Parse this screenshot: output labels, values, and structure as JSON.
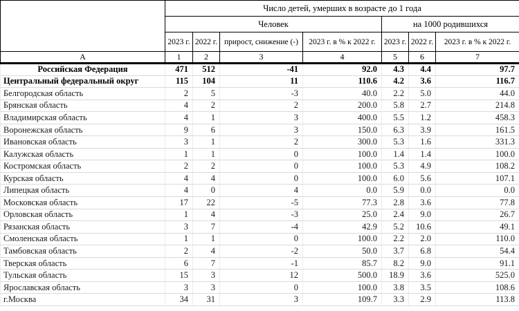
{
  "table": {
    "col_group_header": "Число детей, умерших в возрасте до 1 года",
    "unit_group_left": "Человек",
    "unit_group_right": "на 1000 родившихся",
    "col_headers": [
      "2023 г.",
      "2022 г.",
      "прирост, снижение (-)",
      "2023 г. в % к 2022 г.",
      "2023 г.",
      "2022 г.",
      "2023 г. в % к 2022 г."
    ],
    "index_row": [
      "А",
      "1",
      "2",
      "3",
      "4",
      "5",
      "6",
      "7"
    ],
    "rows": [
      {
        "name": "Российская Федерация",
        "bold": true,
        "center": true,
        "values": [
          "471",
          "512",
          "-41",
          "92.0",
          "4.3",
          "4.4",
          "97.7"
        ]
      },
      {
        "name": "Центральный федеральный округ",
        "bold": true,
        "center": false,
        "values": [
          "115",
          "104",
          "11",
          "110.6",
          "4.2",
          "3.6",
          "116.7"
        ]
      },
      {
        "name": "Белгородская область",
        "values": [
          "2",
          "5",
          "-3",
          "40.0",
          "2.2",
          "5.0",
          "44.0"
        ]
      },
      {
        "name": "Брянская область",
        "values": [
          "4",
          "2",
          "2",
          "200.0",
          "5.8",
          "2.7",
          "214.8"
        ]
      },
      {
        "name": "Владимирская область",
        "values": [
          "4",
          "1",
          "3",
          "400.0",
          "5.5",
          "1.2",
          "458.3"
        ]
      },
      {
        "name": "Воронежская область",
        "values": [
          "9",
          "6",
          "3",
          "150.0",
          "6.3",
          "3.9",
          "161.5"
        ]
      },
      {
        "name": "Ивановская область",
        "values": [
          "3",
          "1",
          "2",
          "300.0",
          "5.3",
          "1.6",
          "331.3"
        ]
      },
      {
        "name": "Калужская область",
        "values": [
          "1",
          "1",
          "0",
          "100.0",
          "1.4",
          "1.4",
          "100.0"
        ]
      },
      {
        "name": "Костромская область",
        "values": [
          "2",
          "2",
          "0",
          "100.0",
          "5.3",
          "4.9",
          "108.2"
        ]
      },
      {
        "name": "Курская область",
        "values": [
          "4",
          "4",
          "0",
          "100.0",
          "6.0",
          "5.6",
          "107.1"
        ]
      },
      {
        "name": "Липецкая область",
        "values": [
          "4",
          "0",
          "4",
          "0.0",
          "5.9",
          "0.0",
          "0.0"
        ]
      },
      {
        "name": "Московская область",
        "values": [
          "17",
          "22",
          "-5",
          "77.3",
          "2.8",
          "3.6",
          "77.8"
        ]
      },
      {
        "name": "Орловская область",
        "values": [
          "1",
          "4",
          "-3",
          "25.0",
          "2.4",
          "9.0",
          "26.7"
        ]
      },
      {
        "name": "Рязанская область",
        "values": [
          "3",
          "7",
          "-4",
          "42.9",
          "5.2",
          "10.6",
          "49.1"
        ]
      },
      {
        "name": "Смоленская область",
        "values": [
          "1",
          "1",
          "0",
          "100.0",
          "2.2",
          "2.0",
          "110.0"
        ]
      },
      {
        "name": "Тамбовская область",
        "values": [
          "2",
          "4",
          "-2",
          "50.0",
          "3.7",
          "6.8",
          "54.4"
        ]
      },
      {
        "name": "Тверская область",
        "values": [
          "6",
          "7",
          "-1",
          "85.7",
          "8.2",
          "9.0",
          "91.1"
        ]
      },
      {
        "name": "Тульская область",
        "values": [
          "15",
          "3",
          "12",
          "500.0",
          "18.9",
          "3.6",
          "525.0"
        ]
      },
      {
        "name": "Ярославская область",
        "values": [
          "3",
          "3",
          "0",
          "100.0",
          "3.8",
          "3.5",
          "108.6"
        ]
      },
      {
        "name": "г.Москва",
        "values": [
          "34",
          "31",
          "3",
          "109.7",
          "3.3",
          "2.9",
          "113.8"
        ]
      }
    ]
  }
}
